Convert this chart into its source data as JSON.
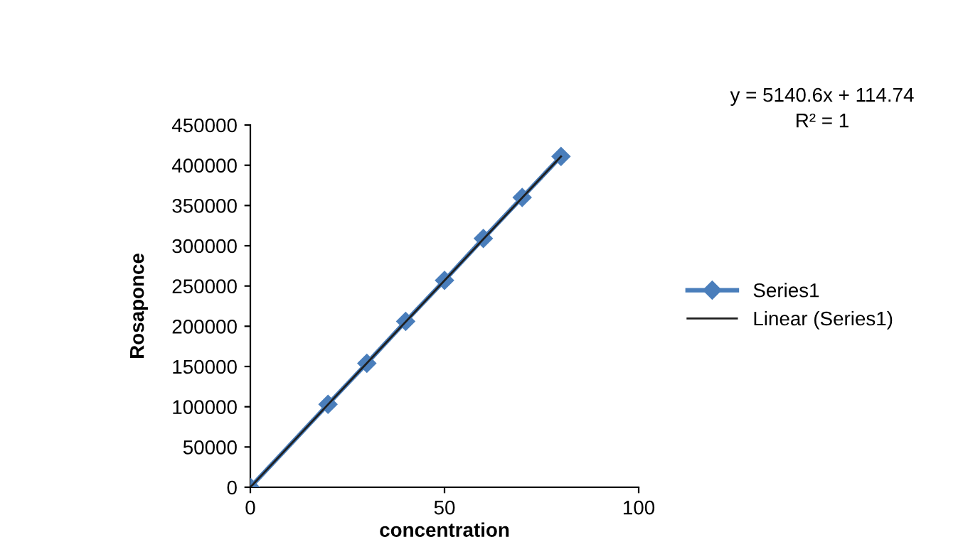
{
  "chart_data": {
    "type": "line",
    "xlabel": "concentration",
    "ylabel": "Rosaponce",
    "xlim": [
      0,
      100
    ],
    "xticks": [
      0,
      50,
      100
    ],
    "ylim": [
      0,
      450000
    ],
    "yticks": [
      0,
      50000,
      100000,
      150000,
      200000,
      250000,
      300000,
      350000,
      400000,
      450000
    ],
    "grid": false,
    "legend": "right",
    "annotations": [
      "y = 5140.6x + 114.74",
      "R² = 1"
    ],
    "series": [
      {
        "name": "Series1",
        "color": "#4a7ebb",
        "marker": "diamond",
        "x": [
          0,
          20,
          30,
          40,
          50,
          60,
          70,
          80
        ],
        "values": [
          0,
          103000,
          154000,
          206000,
          257000,
          309000,
          360000,
          411000
        ]
      },
      {
        "name": "Linear (Series1)",
        "color": "#1f1f1f",
        "marker": "none",
        "x": [
          0,
          80
        ],
        "values": [
          0,
          411000
        ]
      }
    ]
  }
}
